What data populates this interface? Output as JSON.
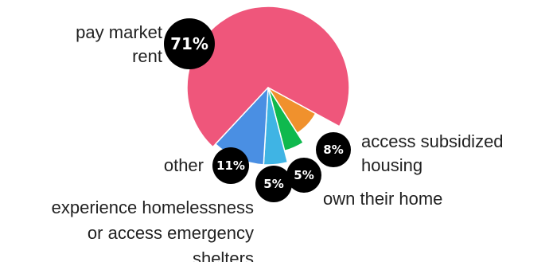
{
  "chart_data": {
    "type": "pie",
    "title": "",
    "slices": [
      {
        "label": [
          "pay market",
          "rent"
        ],
        "value": 71,
        "display": "71%",
        "color": "#ef567b"
      },
      {
        "label": [
          "access subsidized",
          "housing"
        ],
        "value": 8,
        "display": "8%",
        "color": "#f0912d"
      },
      {
        "label": [
          "own their home"
        ],
        "value": 5,
        "display": "5%",
        "color": "#0fb94e"
      },
      {
        "label": [
          "experience homelessness",
          "or access emergency",
          "shelters"
        ],
        "value": 5,
        "display": "5%",
        "color": "#3fb4e4"
      },
      {
        "label": [
          "other"
        ],
        "value": 11,
        "display": "11%",
        "color": "#4a8fe3"
      }
    ]
  },
  "colors": {
    "badge_fill": "#000000",
    "badge_text": "#ffffff",
    "slice_border": "#ffffff",
    "label_text": "#222222"
  }
}
